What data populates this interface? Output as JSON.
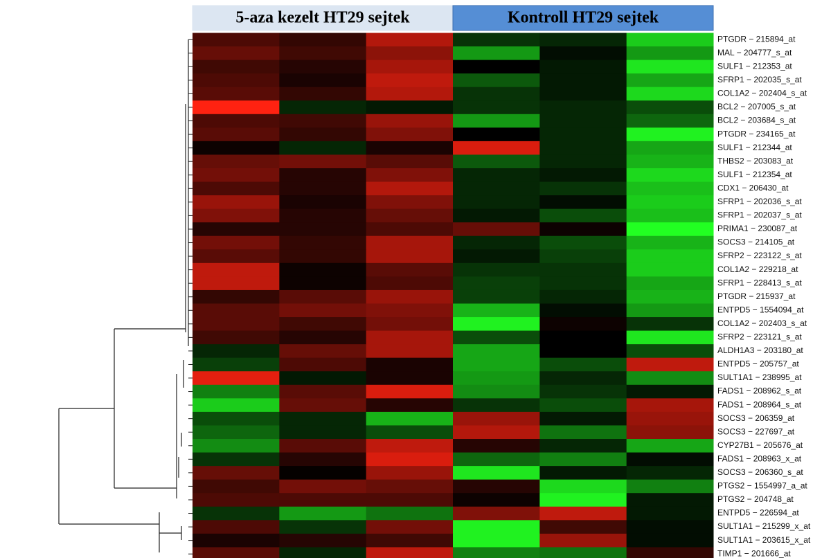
{
  "chart_data": {
    "type": "heatmap",
    "group_labels": [
      "5-aza kezelt HT29 sejtek",
      "Kontroll HT29 sejtek"
    ],
    "group_colors": [
      "#dce6f2",
      "#558ed5"
    ],
    "low_color": "#22ff22",
    "high_color": "#ff2211",
    "mid_color": "#000000",
    "zlim": [
      -1,
      1
    ],
    "rows": [
      "PTGDR − 215894_at",
      "MAL − 204777_s_at",
      "SULF1 − 212353_at",
      "SFRP1 − 202035_s_at",
      "COL1A2 − 202404_s_at",
      "BCL2 − 207005_s_at",
      "BCL2 − 203684_s_at",
      "PTGDR − 234165_at",
      "SULF1 − 212344_at",
      "THBS2 − 203083_at",
      "SULF1 − 212354_at",
      "CDX1 − 206430_at",
      "SFRP1 − 202036_s_at",
      "SFRP1 − 202037_s_at",
      "PRIMA1 − 230087_at",
      "SOCS3 − 214105_at",
      "SFRP2 − 223122_s_at",
      "COL1A2 − 229218_at",
      "SFRP1 − 228413_s_at",
      "PTGDR − 215937_at",
      "ENTPD5 − 1554094_at",
      "COL1A2 − 202403_s_at",
      "SFRP2 − 223121_s_at",
      "ALDH1A3 − 203180_at",
      "ENTPD5 − 205757_at",
      "SULT1A1 − 238995_at",
      "FADS1 − 208962_s_at",
      "FADS1 − 208964_s_at",
      "SOCS3 − 206359_at",
      "SOCS3 − 227697_at",
      "CYP27B1 − 205676_at",
      "FADS1 − 208963_x_at",
      "SOCS3 − 206360_s_at",
      "PTGS2 − 1554997_a_at",
      "PTGS2 − 204748_at",
      "ENTPD5 − 226594_at",
      "SULT1A1 − 215299_x_at",
      "SULT1A1 − 203615_x_at",
      "TIMP1 − 201666_at"
    ],
    "values": [
      [
        0.3,
        0.2,
        0.7,
        -0.2,
        -0.15,
        -0.8
      ],
      [
        0.4,
        0.25,
        0.55,
        -0.6,
        -0.05,
        -0.6
      ],
      [
        0.25,
        0.15,
        0.65,
        0,
        -0.1,
        -0.9
      ],
      [
        0.3,
        0.1,
        0.75,
        -0.35,
        -0.1,
        -0.65
      ],
      [
        0.35,
        0.2,
        0.7,
        -0.2,
        -0.1,
        -0.85
      ],
      [
        1.0,
        -0.15,
        -0.1,
        -0.2,
        -0.15,
        -0.3
      ],
      [
        0.3,
        0.25,
        0.6,
        -0.6,
        -0.15,
        -0.4
      ],
      [
        0.35,
        0.2,
        0.5,
        0,
        -0.15,
        -0.95
      ],
      [
        0.05,
        -0.15,
        0.1,
        0.85,
        -0.15,
        -0.65
      ],
      [
        0.4,
        0.45,
        0.35,
        -0.35,
        -0.15,
        -0.7
      ],
      [
        0.45,
        0.15,
        0.5,
        -0.15,
        -0.1,
        -0.85
      ],
      [
        0.3,
        0.15,
        0.7,
        -0.15,
        -0.2,
        -0.75
      ],
      [
        0.6,
        0.1,
        0.5,
        -0.15,
        -0.05,
        -0.8
      ],
      [
        0.5,
        0.15,
        0.4,
        -0.1,
        -0.3,
        -0.75
      ],
      [
        0.15,
        0.15,
        0.3,
        0.4,
        0.05,
        -1.0
      ],
      [
        0.45,
        0.2,
        0.65,
        -0.15,
        -0.3,
        -0.7
      ],
      [
        0.35,
        0.2,
        0.65,
        -0.1,
        -0.25,
        -0.8
      ],
      [
        0.75,
        0.05,
        0.35,
        -0.2,
        -0.2,
        -0.8
      ],
      [
        0.75,
        0.05,
        0.3,
        -0.25,
        -0.2,
        -0.65
      ],
      [
        0.2,
        0.35,
        0.6,
        -0.25,
        -0.15,
        -0.7
      ],
      [
        0.35,
        0.45,
        0.5,
        -0.7,
        -0.05,
        -0.6
      ],
      [
        0.35,
        0.25,
        0.45,
        -0.95,
        0.05,
        -0.2
      ],
      [
        0.25,
        0.15,
        0.65,
        -0.3,
        0,
        -0.9
      ],
      [
        -0.15,
        0.4,
        0.65,
        -0.65,
        0,
        -0.3
      ],
      [
        -0.25,
        0.3,
        0.1,
        -0.65,
        -0.3,
        0.75
      ],
      [
        0.9,
        -0.1,
        0.1,
        -0.6,
        -0.15,
        -0.55
      ],
      [
        -0.5,
        0.35,
        0.85,
        -0.55,
        -0.2,
        -0.1
      ],
      [
        -0.8,
        0.4,
        0.15,
        -0.2,
        -0.3,
        0.65
      ],
      [
        -0.3,
        -0.15,
        -0.7,
        0.6,
        -0.1,
        0.6
      ],
      [
        -0.4,
        -0.15,
        -0.3,
        0.7,
        -0.45,
        0.55
      ],
      [
        -0.55,
        0.35,
        0.75,
        0.15,
        -0.15,
        -0.65
      ],
      [
        -0.2,
        0.15,
        0.85,
        -0.4,
        -0.5,
        -0.05
      ],
      [
        0.4,
        0.02,
        0.6,
        -0.9,
        -0.1,
        -0.15
      ],
      [
        0.25,
        0.45,
        0.4,
        0.15,
        -0.85,
        -0.5
      ],
      [
        0.3,
        0.3,
        0.3,
        0.05,
        -0.95,
        -0.1
      ],
      [
        -0.2,
        -0.6,
        -0.45,
        0.5,
        0.75,
        -0.1
      ],
      [
        0.3,
        -0.2,
        0.45,
        -0.95,
        0.25,
        -0.05
      ],
      [
        0.1,
        0.15,
        0.25,
        -0.95,
        0.6,
        -0.05
      ],
      [
        0.35,
        -0.15,
        0.75,
        -0.5,
        -0.45,
        0.2
      ]
    ]
  }
}
